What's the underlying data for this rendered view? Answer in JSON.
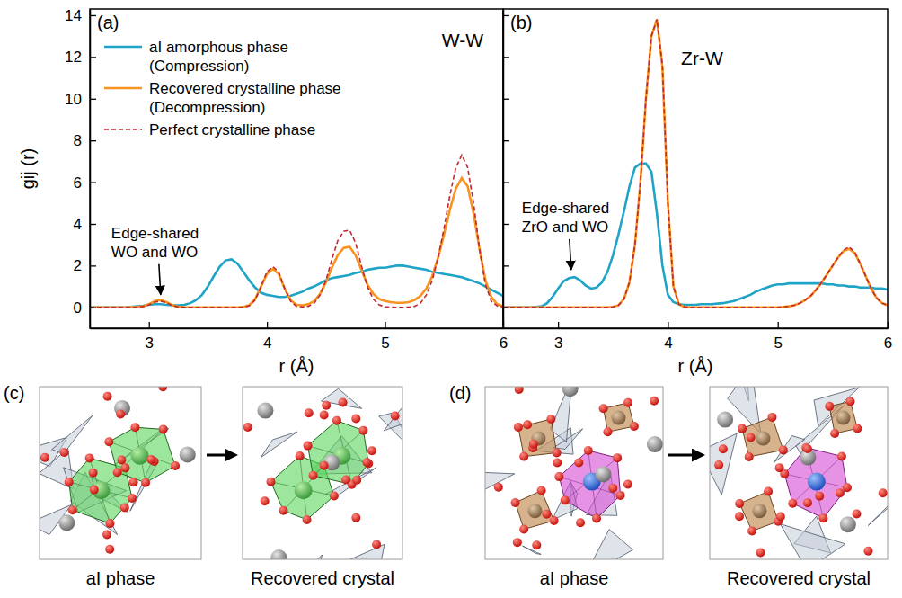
{
  "chart_data": [
    {
      "type": "line",
      "panel_label": "(a)",
      "title": "W-W",
      "x_label": "r (Å)",
      "y_label": "gij (r)",
      "xlim": [
        2.5,
        6
      ],
      "ylim": [
        -1,
        14.3
      ],
      "xticks": [
        3,
        4,
        5,
        6
      ],
      "yticks": [
        0,
        2,
        4,
        6,
        8,
        10,
        12,
        14
      ],
      "legend": "upper left",
      "x": [
        2.5,
        2.55,
        2.6,
        2.65,
        2.7,
        2.75,
        2.8,
        2.85,
        2.9,
        2.95,
        3.0,
        3.05,
        3.1,
        3.15,
        3.2,
        3.25,
        3.3,
        3.35,
        3.4,
        3.45,
        3.5,
        3.55,
        3.6,
        3.65,
        3.7,
        3.75,
        3.8,
        3.85,
        3.9,
        3.95,
        4.0,
        4.05,
        4.1,
        4.15,
        4.2,
        4.25,
        4.3,
        4.35,
        4.4,
        4.45,
        4.5,
        4.55,
        4.6,
        4.65,
        4.7,
        4.75,
        4.8,
        4.85,
        4.9,
        4.95,
        5.0,
        5.05,
        5.1,
        5.15,
        5.2,
        5.25,
        5.3,
        5.35,
        5.4,
        5.45,
        5.5,
        5.55,
        5.6,
        5.65,
        5.7,
        5.75,
        5.8,
        5.85,
        5.9,
        5.95,
        6.0
      ],
      "series": [
        {
          "name": "aI amorphous phase (Compression)",
          "color": "#1fa3c6",
          "line_style": "solid",
          "values": [
            0,
            0,
            0,
            0,
            0,
            0,
            0,
            0.02,
            0.05,
            0.08,
            0.12,
            0.15,
            0.15,
            0.12,
            0.1,
            0.1,
            0.12,
            0.2,
            0.35,
            0.6,
            1.0,
            1.5,
            1.95,
            2.25,
            2.3,
            2.1,
            1.7,
            1.3,
            0.95,
            0.7,
            0.6,
            0.55,
            0.5,
            0.5,
            0.55,
            0.65,
            0.75,
            0.9,
            1.0,
            1.15,
            1.3,
            1.4,
            1.45,
            1.5,
            1.55,
            1.65,
            1.7,
            1.8,
            1.85,
            1.9,
            1.9,
            1.95,
            2.0,
            2.0,
            1.95,
            1.9,
            1.85,
            1.8,
            1.7,
            1.65,
            1.6,
            1.55,
            1.5,
            1.45,
            1.35,
            1.25,
            1.15,
            1.0,
            0.85,
            0.7,
            0.55
          ]
        },
        {
          "name": "Recovered crystalline phase (Decompression)",
          "color": "#f7931e",
          "line_style": "solid",
          "values": [
            0,
            0,
            0,
            0,
            0,
            0,
            0,
            0.01,
            0.02,
            0.05,
            0.15,
            0.3,
            0.35,
            0.25,
            0.1,
            0.03,
            0.01,
            0,
            0,
            0,
            0,
            0,
            0,
            0,
            0,
            0,
            0.02,
            0.1,
            0.4,
            1.0,
            1.6,
            1.85,
            1.6,
            0.9,
            0.35,
            0.12,
            0.1,
            0.15,
            0.3,
            0.65,
            1.2,
            1.9,
            2.5,
            2.85,
            2.9,
            2.5,
            1.8,
            1.1,
            0.65,
            0.4,
            0.3,
            0.25,
            0.22,
            0.22,
            0.25,
            0.35,
            0.55,
            0.9,
            1.5,
            2.4,
            3.5,
            4.7,
            5.7,
            6.2,
            5.8,
            4.5,
            2.8,
            1.3,
            0.5,
            0.15,
            0.05
          ]
        },
        {
          "name": "Perfect crystalline phase",
          "color": "#c1272d",
          "line_style": "dashed",
          "values": [
            0,
            0,
            0,
            0,
            0,
            0,
            0,
            0,
            0.01,
            0.04,
            0.12,
            0.25,
            0.3,
            0.22,
            0.08,
            0.02,
            0,
            0,
            0,
            0,
            0,
            0,
            0,
            0,
            0,
            0,
            0.01,
            0.08,
            0.35,
            1.0,
            1.7,
            1.95,
            1.7,
            0.9,
            0.3,
            0.05,
            0.02,
            0.05,
            0.2,
            0.6,
            1.3,
            2.3,
            3.2,
            3.65,
            3.7,
            3.1,
            2.0,
            1.0,
            0.4,
            0.12,
            0.03,
            0.01,
            0,
            0,
            0.01,
            0.05,
            0.2,
            0.6,
            1.3,
            2.4,
            3.8,
            5.4,
            6.7,
            7.3,
            6.7,
            5.0,
            2.8,
            1.1,
            0.3,
            0.07,
            0.02
          ]
        }
      ],
      "annotations": [
        {
          "text": [
            "Edge-shared",
            "WO and WO"
          ],
          "x": 3.1,
          "y": 0.35
        }
      ]
    },
    {
      "type": "line",
      "panel_label": "(b)",
      "title": "Zr-W",
      "x_label": "r (Å)",
      "xlim": [
        2.5,
        6
      ],
      "ylim": [
        -1,
        14.3
      ],
      "xticks": [
        3,
        4,
        5,
        6
      ],
      "yticks": [
        0,
        2,
        4,
        6,
        8,
        10,
        12,
        14
      ],
      "tick_labels": "x",
      "x": [
        2.5,
        2.55,
        2.6,
        2.65,
        2.7,
        2.75,
        2.8,
        2.85,
        2.9,
        2.95,
        3.0,
        3.05,
        3.1,
        3.15,
        3.2,
        3.25,
        3.3,
        3.35,
        3.4,
        3.45,
        3.5,
        3.55,
        3.6,
        3.65,
        3.7,
        3.75,
        3.8,
        3.85,
        3.9,
        3.95,
        4.0,
        4.05,
        4.1,
        4.15,
        4.2,
        4.25,
        4.3,
        4.35,
        4.4,
        4.45,
        4.5,
        4.55,
        4.6,
        4.65,
        4.7,
        4.75,
        4.8,
        4.85,
        4.9,
        4.95,
        5.0,
        5.05,
        5.1,
        5.15,
        5.2,
        5.25,
        5.3,
        5.35,
        5.4,
        5.45,
        5.5,
        5.55,
        5.6,
        5.65,
        5.7,
        5.75,
        5.8,
        5.85,
        5.9,
        5.95,
        6.0
      ],
      "series": [
        {
          "name": "aI amorphous phase (Compression)",
          "color": "#1fa3c6",
          "line_style": "solid",
          "values": [
            0,
            0,
            0,
            0,
            0,
            0,
            0.02,
            0.05,
            0.2,
            0.5,
            0.9,
            1.25,
            1.4,
            1.45,
            1.3,
            1.05,
            0.9,
            0.95,
            1.2,
            1.7,
            2.5,
            3.5,
            4.6,
            5.8,
            6.7,
            6.9,
            6.9,
            6.5,
            4.5,
            2.0,
            0.6,
            0.25,
            0.15,
            0.12,
            0.12,
            0.12,
            0.15,
            0.15,
            0.15,
            0.18,
            0.2,
            0.25,
            0.3,
            0.4,
            0.5,
            0.6,
            0.75,
            0.85,
            0.95,
            1.05,
            1.1,
            1.1,
            1.15,
            1.15,
            1.15,
            1.15,
            1.15,
            1.15,
            1.15,
            1.1,
            1.1,
            1.05,
            1.05,
            1.0,
            1.0,
            0.95,
            0.95,
            0.95,
            0.9,
            0.9,
            0.85
          ]
        },
        {
          "name": "Recovered crystalline phase (Decompression)",
          "color": "#f7931e",
          "line_style": "solid",
          "values": [
            0,
            0,
            0,
            0,
            0,
            0,
            0,
            0,
            0,
            0,
            0,
            0,
            0,
            0,
            0,
            0,
            0,
            0,
            0,
            0,
            0.02,
            0.1,
            0.4,
            1.2,
            3.0,
            6.0,
            10.0,
            13.0,
            13.8,
            11.5,
            5.0,
            1.0,
            0.15,
            0.02,
            0,
            0,
            0,
            0,
            0,
            0,
            0,
            0,
            0,
            0,
            0,
            0,
            0,
            0,
            0,
            0,
            0,
            0.02,
            0.05,
            0.1,
            0.2,
            0.35,
            0.55,
            0.85,
            1.2,
            1.6,
            2.0,
            2.4,
            2.7,
            2.8,
            2.6,
            2.1,
            1.5,
            0.9,
            0.45,
            0.2,
            0.1
          ]
        },
        {
          "name": "Perfect crystalline phase",
          "color": "#c1272d",
          "line_style": "dashed",
          "values": [
            0,
            0,
            0,
            0,
            0,
            0,
            0,
            0,
            0,
            0,
            0,
            0,
            0,
            0,
            0,
            0,
            0,
            0,
            0,
            0,
            0.02,
            0.1,
            0.4,
            1.2,
            3.0,
            6.0,
            10.0,
            13.0,
            13.8,
            11.6,
            5.0,
            1.0,
            0.15,
            0.02,
            0,
            0,
            0,
            0,
            0,
            0,
            0,
            0,
            0,
            0,
            0,
            0,
            0,
            0,
            0,
            0,
            0,
            0.02,
            0.05,
            0.1,
            0.2,
            0.35,
            0.55,
            0.85,
            1.2,
            1.6,
            2.0,
            2.4,
            2.75,
            2.9,
            2.65,
            2.1,
            1.5,
            0.9,
            0.45,
            0.2,
            0.1
          ]
        }
      ],
      "annotations": [
        {
          "text": [
            "Edge-shared",
            "ZrO and WO"
          ],
          "x": 3.12,
          "y": 1.55
        }
      ]
    }
  ],
  "panels": [
    {
      "label": "(c)",
      "captions": [
        "aI phase",
        "Recovered crystal"
      ]
    },
    {
      "label": "(d)",
      "captions": [
        "aI phase",
        "Recovered crystal"
      ]
    }
  ]
}
